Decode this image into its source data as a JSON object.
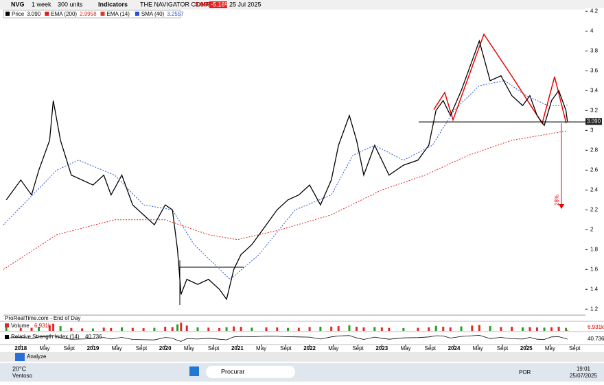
{
  "toolbar": {
    "symbol": "NVG",
    "period": "1 week",
    "units": "300 units",
    "indicators": "Indicators",
    "name": "THE NAVIGATOR COMP",
    "price": "3.090",
    "change": "-5.16%",
    "date": "25 Jul 2025"
  },
  "chart_data": {
    "type": "line",
    "xlim": [
      2017.76,
      2025.82
    ],
    "ylim": [
      1.14,
      4.23
    ],
    "yticks": [
      1.2,
      1.4,
      1.6,
      1.8,
      2,
      2.2,
      2.4,
      2.6,
      2.8,
      3,
      3.2,
      3.4,
      3.6,
      3.8,
      4,
      4.2
    ],
    "xticks": [
      2018,
      {
        "value": 2018.33,
        "label": "May"
      },
      {
        "value": 2018.67,
        "label": "Sept"
      },
      2019,
      {
        "value": 2019.33,
        "label": "May"
      },
      {
        "value": 2019.67,
        "label": "Sept"
      },
      2020,
      {
        "value": 2020.33,
        "label": "May"
      },
      {
        "value": 2020.67,
        "label": "Sept"
      },
      2021,
      {
        "value": 2021.33,
        "label": "May"
      },
      {
        "value": 2021.67,
        "label": "Sept"
      },
      2022,
      {
        "value": 2022.33,
        "label": "May"
      },
      {
        "value": 2022.67,
        "label": "Sept"
      },
      2023,
      {
        "value": 2023.33,
        "label": "May"
      },
      {
        "value": 2023.67,
        "label": "Sept"
      },
      2024,
      {
        "value": 2024.33,
        "label": "May"
      },
      {
        "value": 2024.67,
        "label": "Sept"
      },
      2025,
      {
        "value": 2025.33,
        "label": "May"
      },
      {
        "value": 2025.67,
        "label": "Sept"
      }
    ],
    "price_label": "3.090",
    "series": [
      {
        "name": "Price",
        "color": "#000000",
        "value_label": "3.090",
        "x": [
          2017.8,
          2018.0,
          2018.15,
          2018.25,
          2018.4,
          2018.45,
          2018.55,
          2018.7,
          2018.85,
          2019.0,
          2019.15,
          2019.25,
          2019.4,
          2019.55,
          2019.7,
          2019.85,
          2020.0,
          2020.1,
          2020.17,
          2020.22,
          2020.3,
          2020.45,
          2020.6,
          2020.75,
          2020.85,
          2020.95,
          2021.05,
          2021.2,
          2021.4,
          2021.55,
          2021.7,
          2021.85,
          2022.0,
          2022.15,
          2022.3,
          2022.4,
          2022.55,
          2022.65,
          2022.75,
          2022.9,
          2023.0,
          2023.1,
          2023.3,
          2023.5,
          2023.65,
          2023.75,
          2023.85,
          2023.95,
          2024.1,
          2024.25,
          2024.35,
          2024.5,
          2024.65,
          2024.8,
          2024.95,
          2025.05,
          2025.15,
          2025.25,
          2025.35,
          2025.45,
          2025.55,
          2025.57
        ],
        "values": [
          2.3,
          2.5,
          2.35,
          2.6,
          2.9,
          3.3,
          2.9,
          2.55,
          2.5,
          2.45,
          2.55,
          2.35,
          2.55,
          2.25,
          2.15,
          2.05,
          2.25,
          2.2,
          1.8,
          1.35,
          1.5,
          1.45,
          1.5,
          1.4,
          1.3,
          1.6,
          1.75,
          1.85,
          2.05,
          2.2,
          2.3,
          2.35,
          2.45,
          2.25,
          2.5,
          2.85,
          3.15,
          2.9,
          2.55,
          2.85,
          2.7,
          2.55,
          2.65,
          2.7,
          2.85,
          3.2,
          3.3,
          3.15,
          3.4,
          3.7,
          3.9,
          3.5,
          3.55,
          3.35,
          3.25,
          3.35,
          3.15,
          3.05,
          3.3,
          3.4,
          3.2,
          3.09
        ]
      },
      {
        "name": "EMA (200)",
        "color": "#e0221a",
        "value_label": "2.9958",
        "x": [
          2017.76,
          2018.5,
          2019.3,
          2020.0,
          2020.6,
          2021.0,
          2021.6,
          2022.3,
          2023.0,
          2023.6,
          2024.2,
          2024.8,
          2025.57
        ],
        "values": [
          1.6,
          1.95,
          2.1,
          2.1,
          1.95,
          1.9,
          2.0,
          2.15,
          2.4,
          2.55,
          2.75,
          2.9,
          2.9958
        ]
      },
      {
        "name": "EMA (14)",
        "color": "#d83a2a",
        "x": [],
        "values": []
      },
      {
        "name": "SMA (40)",
        "color": "#2a4fd8",
        "value_label": "3.2557",
        "x": [
          2017.76,
          2018.5,
          2018.8,
          2019.3,
          2019.7,
          2020.1,
          2020.4,
          2020.9,
          2021.3,
          2021.8,
          2022.3,
          2022.6,
          2022.9,
          2023.3,
          2023.7,
          2024.0,
          2024.35,
          2024.7,
          2025.0,
          2025.3,
          2025.57
        ],
        "values": [
          2.05,
          2.6,
          2.7,
          2.55,
          2.25,
          2.2,
          1.85,
          1.5,
          1.75,
          2.2,
          2.35,
          2.75,
          2.85,
          2.7,
          2.85,
          3.2,
          3.45,
          3.5,
          3.35,
          3.25,
          3.2557
        ]
      }
    ],
    "annotation": "28%",
    "source": "ProRealTime.com - End of Day",
    "volume": {
      "name": "Volume",
      "value_label": "6.931k",
      "color": "#e02a2a",
      "ylim": [
        0,
        150000
      ],
      "values": [
        60000,
        45000,
        52000,
        70000,
        90000,
        120000,
        80000,
        50000,
        42000,
        40000,
        55000,
        48000,
        60000,
        50000,
        45000,
        52000,
        70000,
        65000,
        110000,
        140000,
        90000,
        60000,
        55000,
        48000,
        62000,
        75000,
        68000,
        54000,
        60000,
        58000,
        50000,
        52000,
        66000,
        70000,
        72000,
        80000,
        95000,
        70000,
        60000,
        65000,
        58000,
        50000,
        48000,
        52000,
        60000,
        85000,
        70000,
        60000,
        75000,
        90000,
        100000,
        80000,
        65000,
        70000,
        60000,
        64000,
        58000,
        55000,
        62000,
        70000,
        50000,
        6931
      ]
    },
    "rsi": {
      "name": "Relative Strength Index (14)",
      "value_label": "40.736",
      "color": "#000000",
      "ylim": [
        0,
        100
      ],
      "values": [
        50,
        58,
        45,
        60,
        66,
        72,
        52,
        40,
        42,
        45,
        55,
        42,
        56,
        38,
        36,
        34,
        55,
        50,
        30,
        22,
        45,
        42,
        48,
        40,
        35,
        60,
        64,
        62,
        66,
        65,
        62,
        60,
        58,
        42,
        60,
        68,
        72,
        52,
        38,
        58,
        48,
        40,
        52,
        54,
        60,
        70,
        68,
        50,
        64,
        70,
        74,
        46,
        56,
        44,
        42,
        56,
        40,
        38,
        60,
        62,
        45,
        40.736
      ]
    }
  },
  "bottom": {
    "analyze": "Analyze"
  },
  "taskbar": {
    "temp": "20°C",
    "weather": "Ventoso",
    "search": "Procurar",
    "lang": "POR",
    "time": "19:01",
    "date": "25/07/2025"
  }
}
